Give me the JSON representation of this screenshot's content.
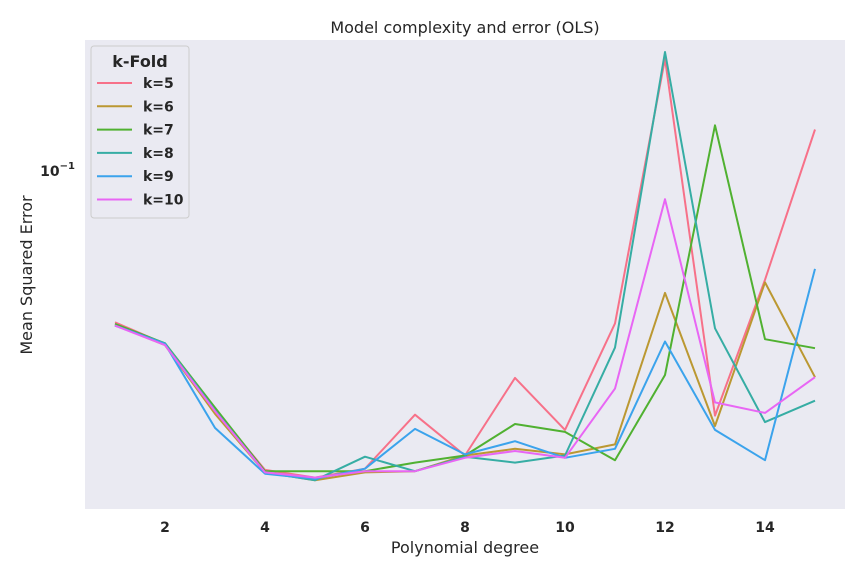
{
  "chart_data": {
    "type": "line",
    "title": "Model complexity and error (OLS)",
    "xlabel": "Polynomial degree",
    "ylabel": "Mean Squared Error",
    "yscale": "log",
    "xlim": [
      0.4,
      15.6
    ],
    "ylim": [
      0.0111,
      0.165
    ],
    "x": [
      1,
      2,
      3,
      4,
      5,
      6,
      7,
      8,
      9,
      10,
      11,
      12,
      13,
      14,
      15
    ],
    "xticks": [
      2,
      4,
      6,
      8,
      10,
      12,
      14
    ],
    "xtick_labels": [
      "2",
      "4",
      "6",
      "8",
      "10",
      "12",
      "14"
    ],
    "yticks": [
      0.1
    ],
    "ytick_labels": [
      "10^-1"
    ],
    "grid": false,
    "legend": {
      "title": "k-Fold",
      "position": "top-left"
    },
    "series": [
      {
        "name": "k=5",
        "color": "#f77189",
        "values": [
          0.0325,
          0.0287,
          0.0197,
          0.0139,
          0.0133,
          0.014,
          0.0191,
          0.0151,
          0.0236,
          0.0175,
          0.0323,
          0.148,
          0.019,
          0.0415,
          0.0986
        ]
      },
      {
        "name": "k=6",
        "color": "#bb9832",
        "values": [
          0.032,
          0.0285,
          0.0192,
          0.0137,
          0.0131,
          0.0137,
          0.0138,
          0.0151,
          0.0157,
          0.0152,
          0.0161,
          0.0385,
          0.0179,
          0.0409,
          0.0237
        ]
      },
      {
        "name": "k=7",
        "color": "#50b131",
        "values": [
          0.0322,
          0.0288,
          0.0199,
          0.0138,
          0.0138,
          0.0138,
          0.0145,
          0.0151,
          0.0181,
          0.0173,
          0.0147,
          0.024,
          0.101,
          0.0295,
          0.028
        ]
      },
      {
        "name": "k=8",
        "color": "#36ada4",
        "values": [
          0.0319,
          0.0288,
          0.0196,
          0.0137,
          0.0131,
          0.015,
          0.0138,
          0.015,
          0.0145,
          0.0151,
          0.0281,
          0.154,
          0.0314,
          0.0183,
          0.0207
        ]
      },
      {
        "name": "k=9",
        "color": "#3ba3ec",
        "values": [
          0.0319,
          0.0287,
          0.0177,
          0.0136,
          0.0132,
          0.014,
          0.0176,
          0.0152,
          0.0164,
          0.0149,
          0.0157,
          0.0291,
          0.0175,
          0.0147,
          0.0442
        ]
      },
      {
        "name": "k=10",
        "color": "#e866f4",
        "values": [
          0.0319,
          0.0285,
          0.0195,
          0.0137,
          0.0133,
          0.0138,
          0.0138,
          0.0149,
          0.0155,
          0.0149,
          0.0222,
          0.066,
          0.0205,
          0.0193,
          0.0237
        ]
      }
    ]
  }
}
